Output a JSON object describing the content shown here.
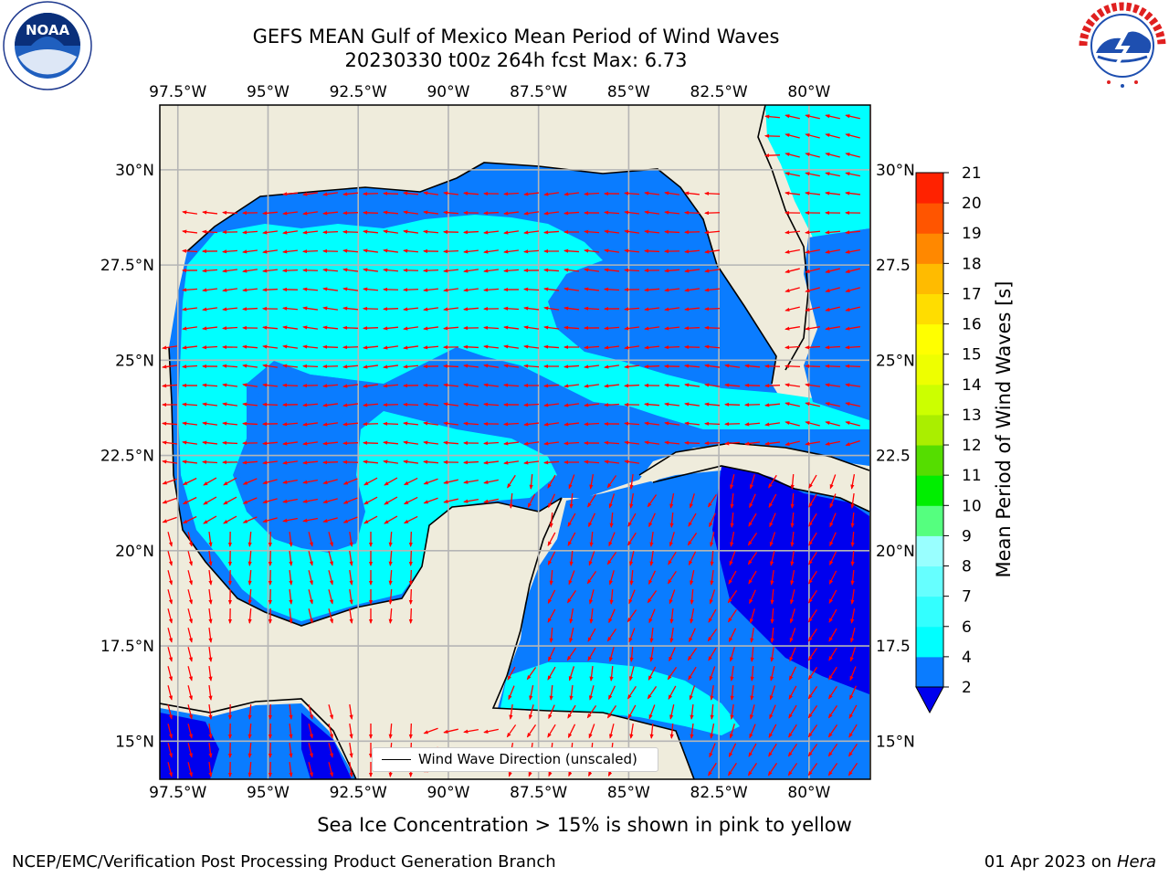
{
  "title": {
    "line1": "GEFS MEAN Gulf of Mexico Mean Period of Wind Waves",
    "line2": "20230330 t00z 264h fcst   Max: 6.73"
  },
  "logos": {
    "left": {
      "icon": "noaa-logo",
      "text": "NOAA",
      "ring_text": "NATIONAL OCEANIC AND ATMOSPHERIC ADMINISTRATION · U.S. DEPARTMENT OF COMMERCE"
    },
    "right": {
      "icon": "nws-logo",
      "ring_text": "NATIONAL WEATHER SERVICE"
    }
  },
  "map": {
    "lon_labels": [
      "97.5°W",
      "95°W",
      "92.5°W",
      "90°W",
      "87.5°W",
      "85°W",
      "82.5°W",
      "80°W"
    ],
    "lon_values": [
      -97.5,
      -95,
      -92.5,
      -90,
      -87.5,
      -85,
      -82.5,
      -80
    ],
    "lat_labels_left": [
      "30°N",
      "27.5°N",
      "25°N",
      "22.5°N",
      "20°N",
      "17.5°N",
      "15°N"
    ],
    "lat_labels_right": [
      "30°N",
      "27.5",
      "25°N",
      "22.5",
      "20°N",
      "17.5",
      "15°N"
    ],
    "lat_values": [
      30,
      27.5,
      25,
      22.5,
      20,
      17.5,
      15
    ],
    "extent": {
      "lon_min": -98,
      "lon_max": -78.3,
      "lat_min": 14.0,
      "lat_max": 31.7
    },
    "colors": {
      "land": "#efecdc",
      "coast": "#000000",
      "grid": "#b5b5b5",
      "arrow": "#ff0000",
      "period_0_2": "#0000ee",
      "period_2_4": "#0a7cff",
      "period_4_6": "#00ffff"
    }
  },
  "legend": {
    "label": "Wind Wave Direction (unscaled)"
  },
  "colorbar": {
    "label": "Mean Period of Wind Waves [s]",
    "levels": [
      2,
      4,
      6,
      7,
      8,
      9,
      10,
      11,
      12,
      13,
      14,
      15,
      16,
      17,
      18,
      19,
      20,
      21
    ],
    "tick_labels": [
      "2",
      "4",
      "6",
      "7",
      "8",
      "9",
      "10",
      "11",
      "12",
      "13",
      "14",
      "15",
      "16",
      "17",
      "18",
      "19",
      "20",
      "21"
    ],
    "colors": [
      "#0a7cff",
      "#00ffff",
      "#33ffff",
      "#66ffff",
      "#99ffff",
      "#55ff7f",
      "#00ee00",
      "#55dd00",
      "#aaee00",
      "#ccff00",
      "#eeff00",
      "#ffff00",
      "#ffdd00",
      "#ffbb00",
      "#ff8800",
      "#ff5500",
      "#ff2200"
    ],
    "under_color": "#0000ee"
  },
  "footer": {
    "ice_note": "Sea Ice Concentration > 15% is shown in pink to yellow",
    "credit": "NCEP/EMC/Verification Post Processing Product Generation Branch",
    "date_prefix": "01 Apr 2023 on ",
    "machine": "Hera"
  }
}
